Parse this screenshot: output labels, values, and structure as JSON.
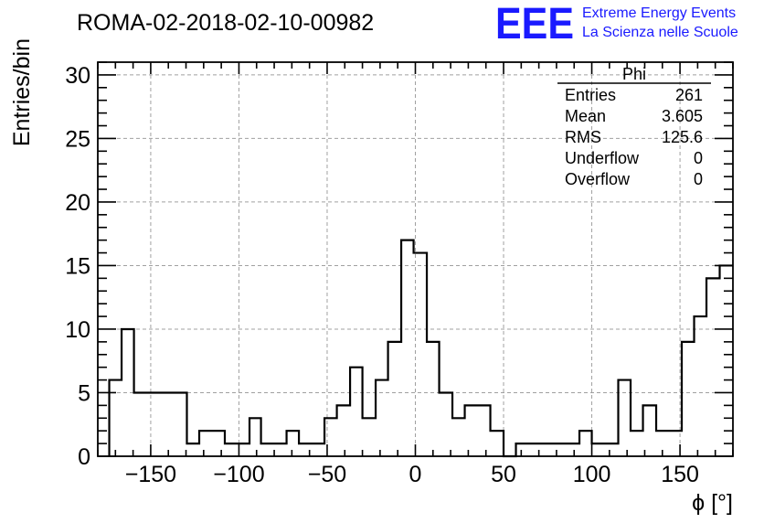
{
  "header": {
    "run_title": "ROMA-02-2018-02-10-00982",
    "logo_text": "EEE",
    "logo_line1": "Extreme Energy Events",
    "logo_line2": "La Scienza nelle Scuole",
    "accent_color": "#1a1aff"
  },
  "stats_box": {
    "title": "Phi",
    "rows": [
      {
        "label": "Entries",
        "value": "261"
      },
      {
        "label": "Mean",
        "value": "3.605"
      },
      {
        "label": "RMS",
        "value": "125.6"
      },
      {
        "label": "Underflow",
        "value": "0"
      },
      {
        "label": "Overflow",
        "value": "0"
      }
    ]
  },
  "chart_data": {
    "type": "histogram",
    "xlabel": "ϕ [°]",
    "ylabel": "Entries/bin",
    "xlim": [
      -180,
      180
    ],
    "ylim": [
      0,
      31
    ],
    "bin_width": 7.2,
    "x_ticks": [
      -150,
      -100,
      -50,
      0,
      50,
      100,
      150
    ],
    "x_tick_labels": [
      "−150",
      "−100",
      "−50",
      "0",
      "50",
      "100",
      "150"
    ],
    "y_ticks": [
      0,
      5,
      10,
      15,
      20,
      25,
      30
    ],
    "y_tick_labels": [
      "0",
      "5",
      "10",
      "15",
      "20",
      "25",
      "30"
    ],
    "grid": true,
    "bins": [
      {
        "x0": -173.5,
        "x1": -166.5,
        "v": 6
      },
      {
        "x0": -166.5,
        "x1": -159.5,
        "v": 10
      },
      {
        "x0": -159.5,
        "x1": -129.5,
        "v": 5
      },
      {
        "x0": -129.5,
        "x1": -122.5,
        "v": 1
      },
      {
        "x0": -122.5,
        "x1": -108.0,
        "v": 2
      },
      {
        "x0": -108.0,
        "x1": -94.0,
        "v": 1
      },
      {
        "x0": -94.0,
        "x1": -87.5,
        "v": 3
      },
      {
        "x0": -87.5,
        "x1": -73.0,
        "v": 1
      },
      {
        "x0": -73.0,
        "x1": -66.0,
        "v": 2
      },
      {
        "x0": -66.0,
        "x1": -51.5,
        "v": 1
      },
      {
        "x0": -51.5,
        "x1": -44.5,
        "v": 3
      },
      {
        "x0": -44.5,
        "x1": -37.0,
        "v": 4
      },
      {
        "x0": -37.0,
        "x1": -30.0,
        "v": 7
      },
      {
        "x0": -30.0,
        "x1": -22.5,
        "v": 3
      },
      {
        "x0": -22.5,
        "x1": -15.5,
        "v": 6
      },
      {
        "x0": -15.5,
        "x1": -8.0,
        "v": 9
      },
      {
        "x0": -8.0,
        "x1": -1.0,
        "v": 17
      },
      {
        "x0": -1.0,
        "x1": 6.5,
        "v": 16
      },
      {
        "x0": 6.5,
        "x1": 13.5,
        "v": 9
      },
      {
        "x0": 13.5,
        "x1": 21.0,
        "v": 5
      },
      {
        "x0": 21.0,
        "x1": 28.0,
        "v": 3
      },
      {
        "x0": 28.0,
        "x1": 42.5,
        "v": 4
      },
      {
        "x0": 42.5,
        "x1": 50.0,
        "v": 2
      },
      {
        "x0": 50.0,
        "x1": 57.0,
        "v": 0
      },
      {
        "x0": 57.0,
        "x1": 93.0,
        "v": 1
      },
      {
        "x0": 93.0,
        "x1": 100.0,
        "v": 2
      },
      {
        "x0": 100.0,
        "x1": 115.0,
        "v": 1
      },
      {
        "x0": 115.0,
        "x1": 122.0,
        "v": 6
      },
      {
        "x0": 122.0,
        "x1": 129.0,
        "v": 2
      },
      {
        "x0": 129.0,
        "x1": 136.5,
        "v": 4
      },
      {
        "x0": 136.5,
        "x1": 151.0,
        "v": 2
      },
      {
        "x0": 151.0,
        "x1": 158.0,
        "v": 9
      },
      {
        "x0": 158.0,
        "x1": 165.0,
        "v": 11
      },
      {
        "x0": 165.0,
        "x1": 172.5,
        "v": 14
      },
      {
        "x0": 172.5,
        "x1": 180.0,
        "v": 15
      }
    ]
  }
}
